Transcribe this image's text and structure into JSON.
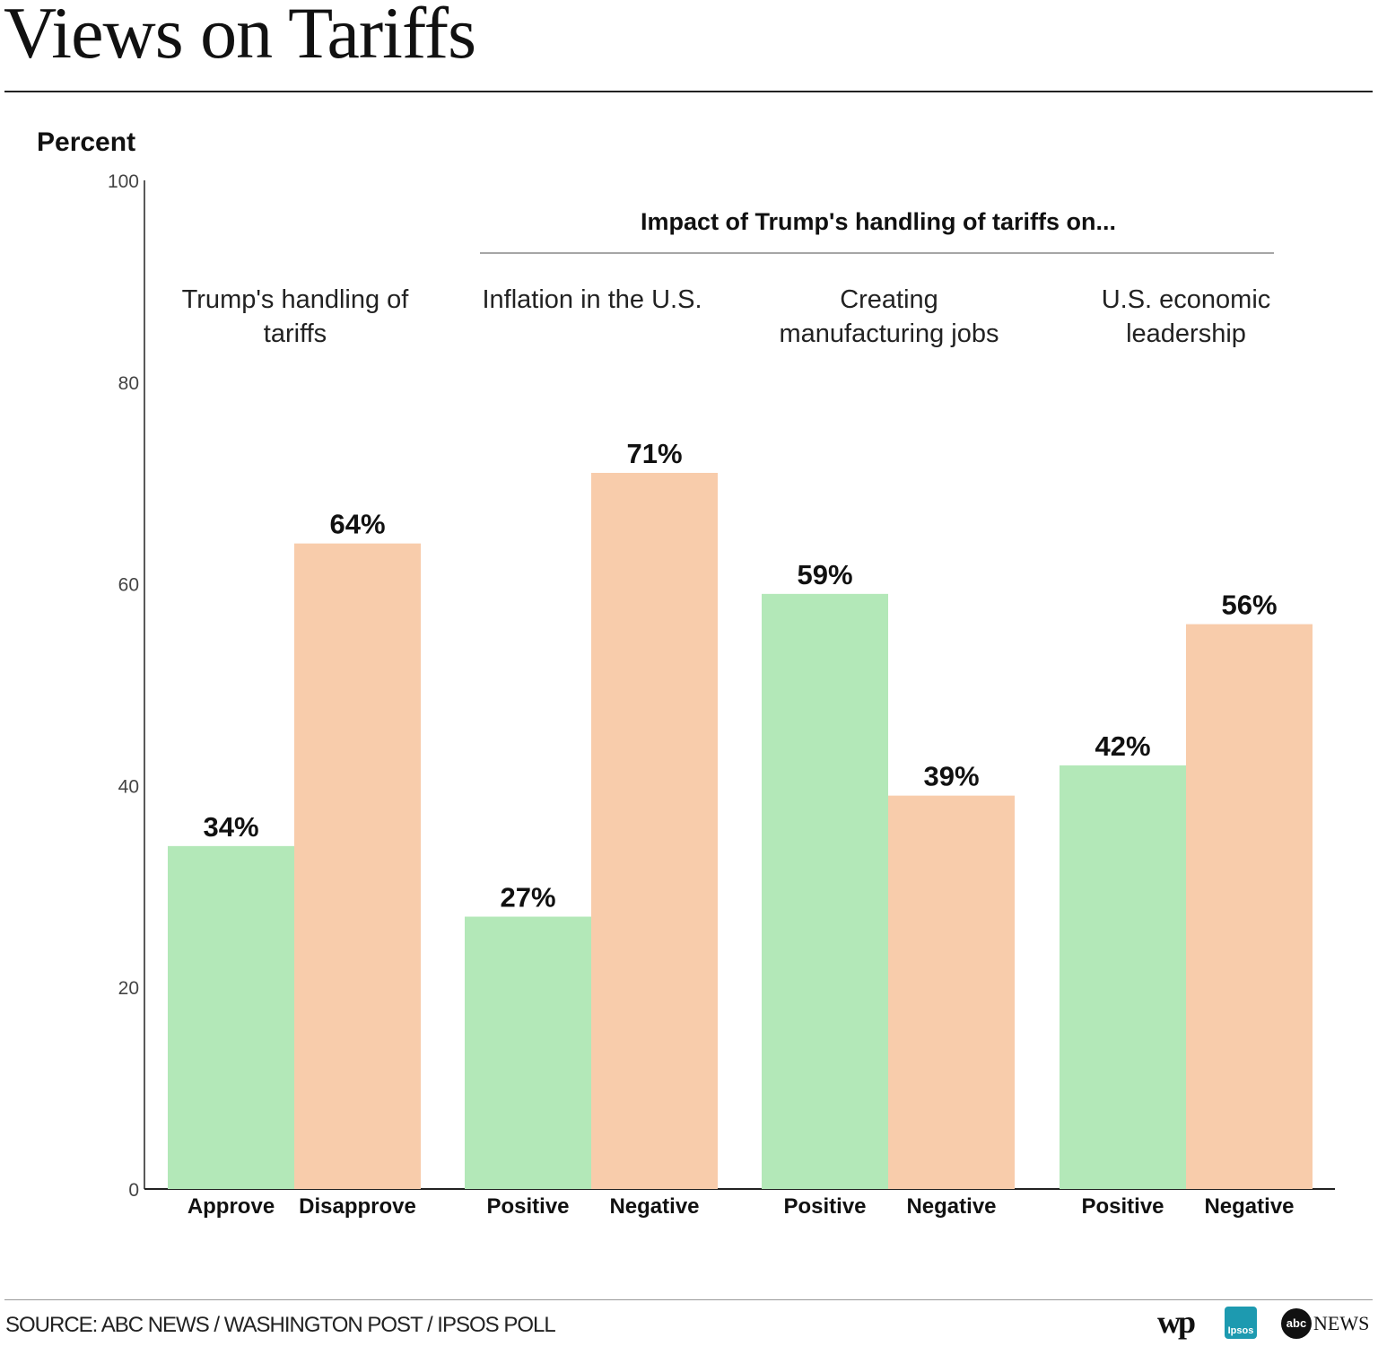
{
  "title": "Views on Tariffs",
  "source": "SOURCE: ABC NEWS / WASHINGTON POST / IPSOS POLL",
  "logos": {
    "wp": "wp",
    "ipsos": "Ipsos",
    "abc": "abc",
    "news": "NEWS"
  },
  "colors": {
    "positive": "#b3e8b8",
    "negative": "#f8ccab",
    "axis": "#222222"
  },
  "chart_data": {
    "type": "bar",
    "ylabel": "Percent",
    "ylim": [
      0,
      100
    ],
    "yticks": [
      0,
      20,
      40,
      60,
      80,
      100
    ],
    "super_header": "Impact of Trump's handling of tariffs on...",
    "groups": [
      {
        "title": [
          "Trump's handling of",
          "tariffs"
        ],
        "bars": [
          {
            "label": "Approve",
            "value": 34,
            "kind": "positive"
          },
          {
            "label": "Disapprove",
            "value": 64,
            "kind": "negative"
          }
        ]
      },
      {
        "title": [
          "Inflation in the U.S."
        ],
        "bars": [
          {
            "label": "Positive",
            "value": 27,
            "kind": "positive"
          },
          {
            "label": "Negative",
            "value": 71,
            "kind": "negative"
          }
        ]
      },
      {
        "title": [
          "Creating",
          "manufacturing jobs"
        ],
        "bars": [
          {
            "label": "Positive",
            "value": 59,
            "kind": "positive"
          },
          {
            "label": "Negative",
            "value": 39,
            "kind": "negative"
          }
        ]
      },
      {
        "title": [
          "U.S. economic",
          "leadership"
        ],
        "bars": [
          {
            "label": "Positive",
            "value": 42,
            "kind": "positive"
          },
          {
            "label": "Negative",
            "value": 56,
            "kind": "negative"
          }
        ]
      }
    ]
  }
}
